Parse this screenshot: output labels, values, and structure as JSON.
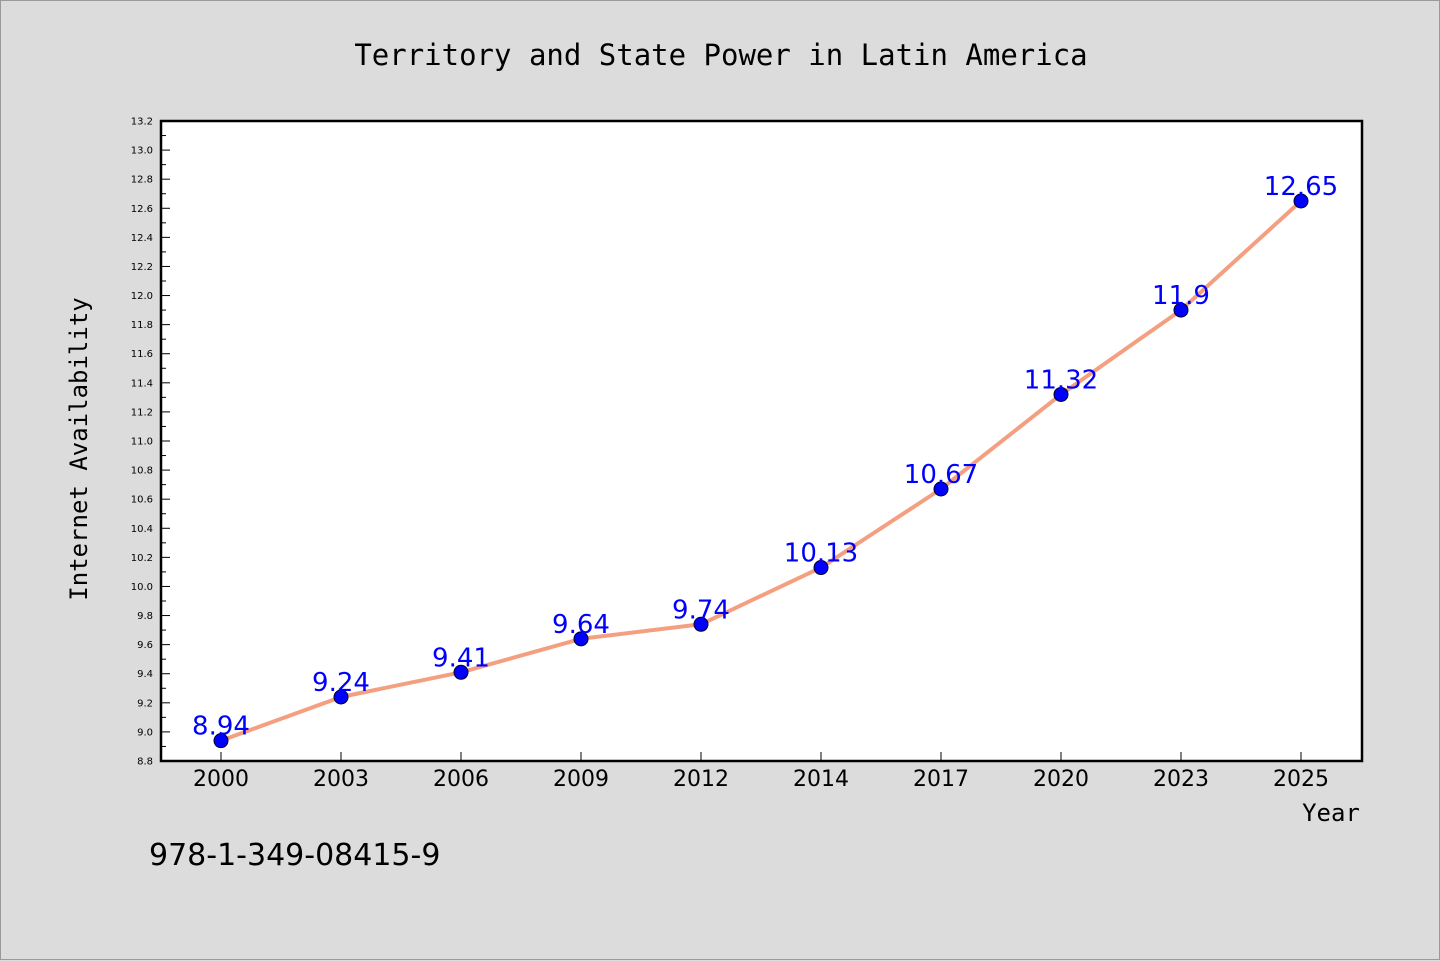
{
  "chart_data": {
    "type": "line",
    "title": "Territory and State Power in Latin America",
    "xlabel": "Year",
    "ylabel": "Internet Availability",
    "categories": [
      "2000",
      "2003",
      "2006",
      "2009",
      "2012",
      "2014",
      "2017",
      "2020",
      "2023",
      "2025"
    ],
    "series": [
      {
        "values": [
          8.94,
          9.24,
          9.41,
          9.64,
          9.74,
          10.13,
          10.67,
          11.32,
          11.9,
          12.65
        ],
        "labels": [
          "8.94",
          "9.24",
          "9.41",
          "9.64",
          "9.74",
          "10.13",
          "10.67",
          "11.32",
          "11.9",
          "12.65"
        ]
      }
    ],
    "ylim": [
      8.8,
      13.2
    ],
    "yticks": [
      "8.8",
      "9.0",
      "9.2",
      "9.4",
      "9.6",
      "9.8",
      "10.0",
      "10.2",
      "10.4",
      "10.6",
      "10.8",
      "11.0",
      "11.2",
      "11.4",
      "11.6",
      "11.8",
      "12.0",
      "12.2",
      "12.4",
      "12.6",
      "12.8",
      "13.0",
      "13.2"
    ],
    "grid": false,
    "line_color": "#f4a080",
    "marker_color": "#0000ff",
    "label_color": "#0000ff",
    "background": "#dcdcdc"
  },
  "footer": {
    "isbn": "978-1-349-08415-9"
  }
}
